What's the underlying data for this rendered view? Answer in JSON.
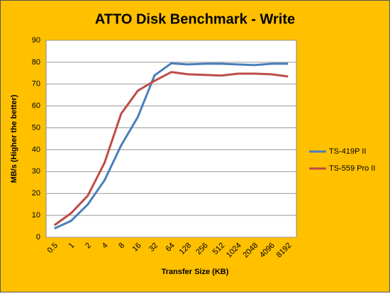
{
  "chart_data": {
    "type": "line",
    "title": "ATTO Disk Benchmark - Write",
    "x_label": "Transfer Size (KB)",
    "y_label": "MB/s (Higher the better)",
    "categories": [
      "0.5",
      "1",
      "2",
      "4",
      "8",
      "16",
      "32",
      "64",
      "128",
      "256",
      "512",
      "1024",
      "2048",
      "4096",
      "8192"
    ],
    "series": [
      {
        "name": "TS-419P II",
        "color": "#4a7ebb",
        "values": [
          4,
          7.5,
          15,
          26,
          42,
          55,
          74,
          79.5,
          79,
          79.3,
          79.3,
          79,
          78.7,
          79.3,
          79.3
        ]
      },
      {
        "name": "TS-559 Pro II",
        "color": "#be4b48",
        "values": [
          5.5,
          11,
          19,
          34,
          56.5,
          67,
          71.5,
          75.5,
          74.5,
          74.2,
          73.9,
          74.8,
          74.8,
          74.5,
          73.5
        ]
      }
    ],
    "ylim": [
      0,
      90
    ],
    "yticks": [
      0,
      10,
      20,
      30,
      40,
      50,
      60,
      70,
      80,
      90
    ],
    "grid": true,
    "legend": "right",
    "background": "#ffc000"
  }
}
